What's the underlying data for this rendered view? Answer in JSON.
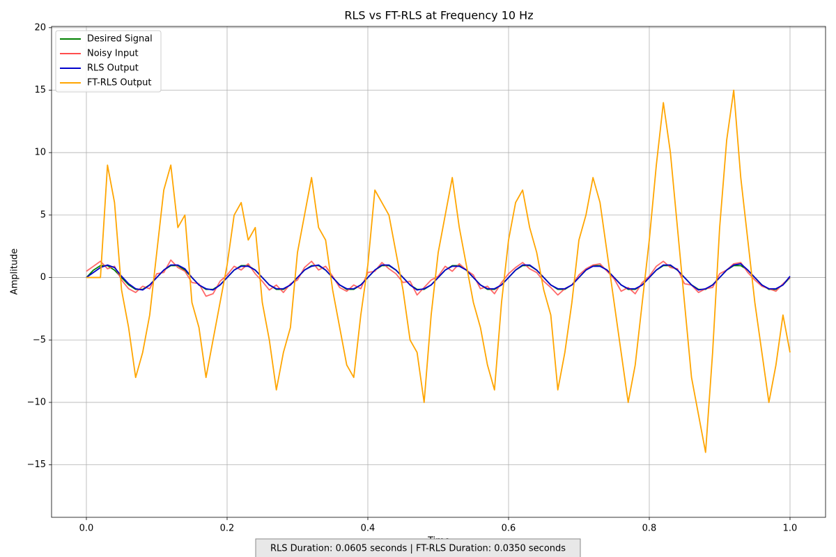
{
  "chart_data": {
    "type": "line",
    "title": "RLS vs FT-RLS at Frequency 10 Hz",
    "x_label": "Time",
    "y_label": "Amplitude",
    "annotation": "RLS Duration: 0.0605 seconds | FT-RLS Duration: 0.0350 seconds",
    "legend": "upper left",
    "grid": true,
    "xlim": [
      -0.0495,
      1.0505
    ],
    "ylim": [
      -19.2,
      20.1
    ],
    "xticks": [
      {
        "value": 0,
        "label": "0.0"
      },
      0.2,
      0.4,
      0.6,
      0.8,
      {
        "value": 1,
        "label": "1.0"
      }
    ],
    "yticks": [
      {
        "value": -15,
        "label": "−15"
      },
      {
        "value": -10,
        "label": "−10"
      },
      {
        "value": -5,
        "label": "−5"
      },
      0,
      5,
      10,
      15,
      20
    ],
    "x": [
      0,
      0.01,
      0.02,
      0.03,
      0.04,
      0.05,
      0.06,
      0.07,
      0.08,
      0.09,
      0.1,
      0.11,
      0.12,
      0.13,
      0.14,
      0.15,
      0.16,
      0.17,
      0.18,
      0.19,
      0.2,
      0.21,
      0.22,
      0.23,
      0.24,
      0.25,
      0.26,
      0.27,
      0.28,
      0.29,
      0.3,
      0.31,
      0.32,
      0.33,
      0.34,
      0.35,
      0.36,
      0.37,
      0.38,
      0.39,
      0.4,
      0.41,
      0.42,
      0.43,
      0.44,
      0.45,
      0.46,
      0.47,
      0.48,
      0.49,
      0.5,
      0.51,
      0.52,
      0.53,
      0.54,
      0.55,
      0.56,
      0.57,
      0.58,
      0.59,
      0.6,
      0.61,
      0.62,
      0.63,
      0.64,
      0.65,
      0.66,
      0.67,
      0.68,
      0.69,
      0.7,
      0.71,
      0.72,
      0.73,
      0.74,
      0.75,
      0.76,
      0.77,
      0.78,
      0.79,
      0.8,
      0.81,
      0.82,
      0.83,
      0.84,
      0.85,
      0.86,
      0.87,
      0.88,
      0.89,
      0.9,
      0.91,
      0.92,
      0.93,
      0.94,
      0.95,
      0.96,
      0.97,
      0.98,
      0.99,
      1
    ],
    "series": [
      {
        "name": "Desired Signal",
        "color": "#008000",
        "values": [
          0,
          0.588,
          0.951,
          0.951,
          0.588,
          0,
          -0.588,
          -0.951,
          -0.951,
          -0.588,
          0,
          0.588,
          0.951,
          0.951,
          0.588,
          0,
          -0.588,
          -0.951,
          -0.951,
          -0.588,
          0,
          0.588,
          0.951,
          0.951,
          0.588,
          0,
          -0.588,
          -0.951,
          -0.951,
          -0.588,
          0,
          0.588,
          0.951,
          0.951,
          0.588,
          0,
          -0.588,
          -0.951,
          -0.951,
          -0.588,
          0,
          0.588,
          0.951,
          0.951,
          0.588,
          0,
          -0.588,
          -0.951,
          -0.951,
          -0.588,
          0,
          0.588,
          0.951,
          0.951,
          0.588,
          0,
          -0.588,
          -0.951,
          -0.951,
          -0.588,
          0,
          0.588,
          0.951,
          0.951,
          0.588,
          0,
          -0.588,
          -0.951,
          -0.951,
          -0.588,
          0,
          0.588,
          0.951,
          0.951,
          0.588,
          0,
          -0.588,
          -0.951,
          -0.951,
          -0.588,
          0,
          0.588,
          0.951,
          0.951,
          0.588,
          0,
          -0.588,
          -0.951,
          -0.951,
          -0.588,
          0,
          0.588,
          0.951,
          0.951,
          0.588,
          0,
          -0.588,
          -0.951,
          -0.951,
          -0.588,
          0
        ]
      },
      {
        "name": "Noisy Input",
        "color": "#ff4d4d",
        "values": [
          0.5,
          0.9,
          1.3,
          0.7,
          0.9,
          -0.2,
          -0.9,
          -1.2,
          -0.7,
          -0.9,
          0.3,
          0.4,
          1.4,
          0.8,
          0.5,
          -0.4,
          -0.5,
          -1.5,
          -1.3,
          -0.3,
          0.2,
          0.9,
          0.6,
          1.1,
          0.3,
          -0.3,
          -1.0,
          -0.6,
          -1.2,
          -0.5,
          -0.2,
          0.8,
          1.3,
          0.6,
          0.9,
          0.1,
          -0.8,
          -1.1,
          -0.6,
          -0.9,
          0.4,
          0.5,
          1.2,
          0.7,
          0.3,
          -0.4,
          -0.3,
          -1.4,
          -0.8,
          -0.2,
          0.1,
          0.9,
          0.5,
          1.1,
          0.6,
          0.2,
          -0.9,
          -0.7,
          -1.3,
          -0.4,
          0.3,
          0.8,
          1.2,
          0.7,
          0.4,
          -0.3,
          -0.8,
          -1.4,
          -0.9,
          -0.6,
          0.2,
          0.7,
          1.0,
          1.1,
          0.5,
          -0.1,
          -1.1,
          -0.8,
          -1.3,
          -0.4,
          0.1,
          0.9,
          1.3,
          0.8,
          0.7,
          -0.5,
          -0.6,
          -1.2,
          -0.9,
          -0.8,
          0.3,
          0.6,
          1.1,
          1.2,
          0.4,
          -0.2,
          -0.7,
          -0.9,
          -1.1,
          -0.5,
          0.0
        ]
      },
      {
        "name": "RLS Output",
        "color": "#0000cc",
        "values": [
          0,
          0.4,
          0.8,
          1.0,
          0.8,
          0.1,
          -0.5,
          -0.9,
          -1.0,
          -0.6,
          0,
          0.6,
          1.0,
          1.0,
          0.7,
          0,
          -0.6,
          -0.9,
          -1.0,
          -0.6,
          0,
          0.6,
          0.9,
          0.9,
          0.6,
          0,
          -0.6,
          -0.9,
          -0.9,
          -0.6,
          0,
          0.6,
          0.9,
          1.0,
          0.6,
          0,
          -0.6,
          -0.9,
          -0.9,
          -0.6,
          0,
          0.6,
          1.0,
          1.0,
          0.6,
          0,
          -0.6,
          -1.0,
          -0.9,
          -0.6,
          0,
          0.6,
          0.9,
          0.9,
          0.6,
          0,
          -0.6,
          -0.9,
          -0.9,
          -0.6,
          0,
          0.6,
          1.0,
          1.0,
          0.6,
          0,
          -0.6,
          -0.9,
          -0.9,
          -0.6,
          0,
          0.6,
          0.9,
          0.9,
          0.6,
          0,
          -0.6,
          -0.9,
          -0.9,
          -0.6,
          0,
          0.6,
          1.0,
          1.0,
          0.6,
          0,
          -0.6,
          -1.0,
          -0.9,
          -0.6,
          0,
          0.6,
          1.0,
          1.1,
          0.6,
          0,
          -0.6,
          -0.9,
          -0.9,
          -0.6,
          0.1
        ]
      },
      {
        "name": "FT-RLS Output",
        "color": "#ffa500",
        "values": [
          0,
          0,
          0,
          9,
          6,
          -1,
          -4,
          -8,
          -6,
          -3,
          2,
          7,
          9,
          4,
          5,
          -2,
          -4,
          -8,
          -5,
          -2,
          1,
          5,
          6,
          3,
          4,
          -2,
          -5,
          -9,
          -6,
          -4,
          2,
          5,
          8,
          4,
          3,
          -1,
          -4,
          -7,
          -8,
          -3,
          1,
          7,
          6,
          5,
          2,
          -1,
          -5,
          -6,
          -10,
          -3,
          2,
          5,
          8,
          4,
          1,
          -2,
          -4,
          -7,
          -9,
          -2,
          3,
          6,
          7,
          4,
          2,
          -1,
          -3,
          -9,
          -6,
          -2,
          3,
          5,
          8,
          6,
          2,
          -2,
          -6,
          -10,
          -7,
          -2,
          3,
          9,
          14,
          10,
          4,
          -2,
          -8,
          -11,
          -14,
          -6,
          4,
          11,
          15,
          8,
          3,
          -2,
          -6,
          -10,
          -7,
          -3,
          -6
        ]
      }
    ]
  }
}
